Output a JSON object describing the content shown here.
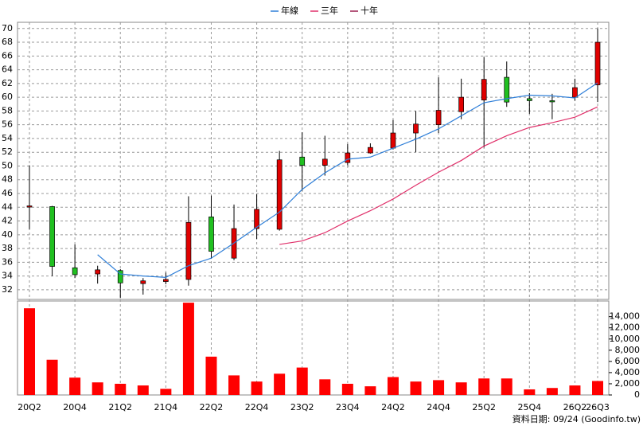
{
  "chart_data": [
    {
      "type": "candlestick",
      "open": [
        44.1,
        44.1,
        35.2,
        34.3,
        34.8,
        32.9,
        33.2,
        33.5,
        42.6,
        36.6,
        40.9,
        40.8,
        51.3,
        50.1,
        50.5,
        51.9,
        52.6,
        54.8,
        56.0,
        57.9,
        59.6,
        62.9,
        59.8,
        59.5,
        60.0,
        61.8
      ],
      "high": [
        50.1,
        44.2,
        38.6,
        35.5,
        35.0,
        33.7,
        34.5,
        45.6,
        45.7,
        44.4,
        45.9,
        52.2,
        54.9,
        54.4,
        53.2,
        53.3,
        56.7,
        58.0,
        62.9,
        62.7,
        65.8,
        65.2,
        60.6,
        60.5,
        62.7,
        70.0
      ],
      "low": [
        40.8,
        34.0,
        33.7,
        32.9,
        30.8,
        31.3,
        32.8,
        32.6,
        36.5,
        36.3,
        39.4,
        40.6,
        46.4,
        48.6,
        50.1,
        51.8,
        52.4,
        52.0,
        54.8,
        56.8,
        52.7,
        58.6,
        57.6,
        56.8,
        59.5,
        59.3
      ],
      "close": [
        44.2,
        35.4,
        34.2,
        34.9,
        33.0,
        33.3,
        33.5,
        41.8,
        37.6,
        40.9,
        43.7,
        50.9,
        50.1,
        51.0,
        51.9,
        52.7,
        54.8,
        56.1,
        58.1,
        60.0,
        62.6,
        59.3,
        59.5,
        59.4,
        61.4,
        68.0
      ],
      "up_color": "#e00000",
      "down_color": "#20c020",
      "series": [
        {
          "name": "年線",
          "color": "#2f7fd8",
          "values": [
            null,
            null,
            null,
            37.1,
            34.3,
            34.0,
            33.8,
            35.5,
            36.6,
            38.8,
            41.1,
            43.3,
            46.6,
            49.0,
            51.0,
            51.3,
            52.6,
            53.9,
            55.4,
            57.3,
            59.2,
            59.8,
            60.3,
            60.2,
            59.9,
            62.1
          ]
        },
        {
          "name": "三年",
          "color": "#e0306a",
          "values": [
            null,
            null,
            null,
            null,
            null,
            null,
            null,
            null,
            null,
            null,
            null,
            38.6,
            39.1,
            40.3,
            42.0,
            43.5,
            45.2,
            47.2,
            49.1,
            50.8,
            52.9,
            54.4,
            55.6,
            56.3,
            57.1,
            58.6
          ]
        },
        {
          "name": "十年",
          "color": "#9a2050",
          "values": [
            null,
            null,
            null,
            null,
            null,
            null,
            null,
            null,
            null,
            null,
            null,
            null,
            null,
            null,
            null,
            null,
            null,
            null,
            null,
            null,
            null,
            null,
            null,
            null,
            null,
            null
          ]
        }
      ],
      "ylim": [
        30.6,
        70.9
      ],
      "yticks": [
        32,
        34,
        36,
        38,
        40,
        42,
        44,
        46,
        48,
        50,
        52,
        54,
        56,
        58,
        60,
        62,
        64,
        66,
        68,
        70
      ],
      "grid": true,
      "legend": "top"
    },
    {
      "type": "bar",
      "categories": [
        "20Q2",
        null,
        "20Q4",
        null,
        "21Q2",
        null,
        "21Q4",
        null,
        "22Q2",
        null,
        "22Q4",
        null,
        "23Q2",
        null,
        "23Q4",
        null,
        "24Q2",
        null,
        "24Q4",
        null,
        "25Q2",
        null,
        "25Q4",
        null,
        "26Q2",
        "26Q3"
      ],
      "values": [
        15500,
        6300,
        3100,
        2250,
        2000,
        1700,
        1100,
        16500,
        6850,
        3500,
        2400,
        3800,
        4900,
        2800,
        2000,
        1550,
        3200,
        2400,
        2650,
        2250,
        2950,
        2950,
        1000,
        1250,
        1700,
        2500
      ],
      "color": "#ff0000",
      "ylim": [
        0,
        16800
      ],
      "yticks": [
        0,
        {
          "value": 2000,
          "label": "2,000"
        },
        {
          "value": 4000,
          "label": "4,000"
        },
        {
          "value": 6000,
          "label": "6,000"
        },
        {
          "value": 8000,
          "label": "8,000"
        },
        {
          "value": 10000,
          "label": "10,000"
        },
        {
          "value": 12000,
          "label": "12,000"
        },
        {
          "value": 14000,
          "label": "14,000"
        }
      ],
      "grid": true
    }
  ],
  "source": "資料日期: 09/24  (Goodinfo.tw)"
}
